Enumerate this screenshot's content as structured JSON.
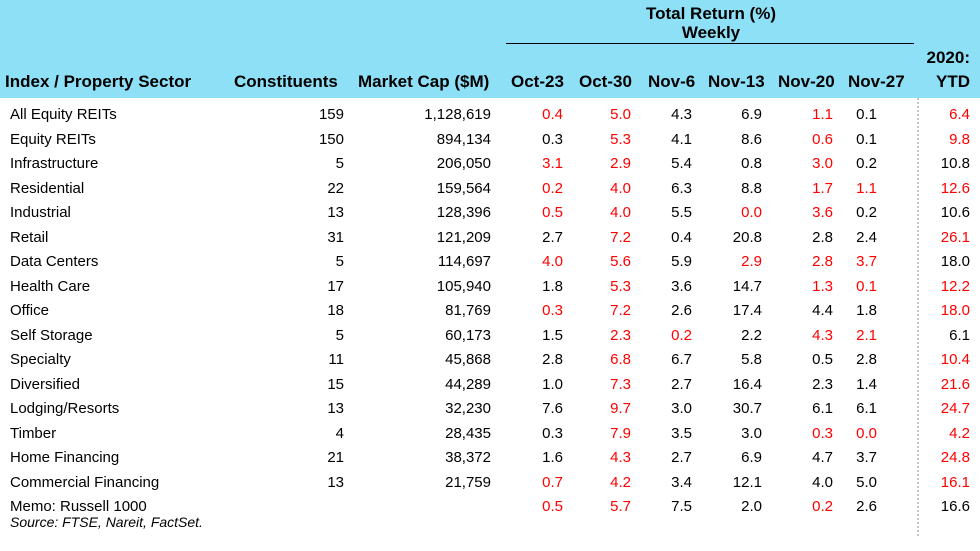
{
  "header": {
    "group_title_line1": "Total Return (%)",
    "group_title_line2": "Weekly",
    "year_top": "2020:",
    "columns": [
      "Index / Property Sector",
      "Constituents",
      "Market Cap ($M)",
      "Oct-23",
      "Oct-30",
      "Nov-6",
      "Nov-13",
      "Nov-20",
      "Nov-27",
      "YTD"
    ]
  },
  "colors": {
    "header_bg": "#8ee0f7",
    "highlight": "#ff0000"
  },
  "rows": [
    {
      "name": "All Equity REITs",
      "constituents": "159",
      "market_cap": "1,128,619",
      "vals": [
        "0.4",
        "5.0",
        "4.3",
        "6.9",
        "1.1",
        "0.1",
        "6.4"
      ],
      "red": [
        true,
        true,
        false,
        false,
        true,
        false,
        true
      ]
    },
    {
      "name": "Equity REITs",
      "constituents": "150",
      "market_cap": "894,134",
      "vals": [
        "0.3",
        "5.3",
        "4.1",
        "8.6",
        "0.6",
        "0.1",
        "9.8"
      ],
      "red": [
        false,
        true,
        false,
        false,
        true,
        false,
        true
      ]
    },
    {
      "name": "Infrastructure",
      "constituents": "5",
      "market_cap": "206,050",
      "vals": [
        "3.1",
        "2.9",
        "5.4",
        "0.8",
        "3.0",
        "0.2",
        "10.8"
      ],
      "red": [
        true,
        true,
        false,
        false,
        true,
        false,
        false
      ]
    },
    {
      "name": "Residential",
      "constituents": "22",
      "market_cap": "159,564",
      "vals": [
        "0.2",
        "4.0",
        "6.3",
        "8.8",
        "1.7",
        "1.1",
        "12.6"
      ],
      "red": [
        true,
        true,
        false,
        false,
        true,
        true,
        true
      ]
    },
    {
      "name": "Industrial",
      "constituents": "13",
      "market_cap": "128,396",
      "vals": [
        "0.5",
        "4.0",
        "5.5",
        "0.0",
        "3.6",
        "0.2",
        "10.6"
      ],
      "red": [
        true,
        true,
        false,
        true,
        true,
        false,
        false
      ]
    },
    {
      "name": "Retail",
      "constituents": "31",
      "market_cap": "121,209",
      "vals": [
        "2.7",
        "7.2",
        "0.4",
        "20.8",
        "2.8",
        "2.4",
        "26.1"
      ],
      "red": [
        false,
        true,
        false,
        false,
        false,
        false,
        true
      ]
    },
    {
      "name": "Data Centers",
      "constituents": "5",
      "market_cap": "114,697",
      "vals": [
        "4.0",
        "5.6",
        "5.9",
        "2.9",
        "2.8",
        "3.7",
        "18.0"
      ],
      "red": [
        true,
        true,
        false,
        true,
        true,
        true,
        false
      ]
    },
    {
      "name": "Health Care",
      "constituents": "17",
      "market_cap": "105,940",
      "vals": [
        "1.8",
        "5.3",
        "3.6",
        "14.7",
        "1.3",
        "0.1",
        "12.2"
      ],
      "red": [
        false,
        true,
        false,
        false,
        true,
        true,
        true
      ]
    },
    {
      "name": "Office",
      "constituents": "18",
      "market_cap": "81,769",
      "vals": [
        "0.3",
        "7.2",
        "2.6",
        "17.4",
        "4.4",
        "1.8",
        "18.0"
      ],
      "red": [
        true,
        true,
        false,
        false,
        false,
        false,
        true
      ]
    },
    {
      "name": "Self Storage",
      "constituents": "5",
      "market_cap": "60,173",
      "vals": [
        "1.5",
        "2.3",
        "0.2",
        "2.2",
        "4.3",
        "2.1",
        "6.1"
      ],
      "red": [
        false,
        true,
        true,
        false,
        true,
        true,
        false
      ]
    },
    {
      "name": "Specialty",
      "constituents": "11",
      "market_cap": "45,868",
      "vals": [
        "2.8",
        "6.8",
        "6.7",
        "5.8",
        "0.5",
        "2.8",
        "10.4"
      ],
      "red": [
        false,
        true,
        false,
        false,
        false,
        false,
        true
      ]
    },
    {
      "name": "Diversified",
      "constituents": "15",
      "market_cap": "44,289",
      "vals": [
        "1.0",
        "7.3",
        "2.7",
        "16.4",
        "2.3",
        "1.4",
        "21.6"
      ],
      "red": [
        false,
        true,
        false,
        false,
        false,
        false,
        true
      ]
    },
    {
      "name": "Lodging/Resorts",
      "constituents": "13",
      "market_cap": "32,230",
      "vals": [
        "7.6",
        "9.7",
        "3.0",
        "30.7",
        "6.1",
        "6.1",
        "24.7"
      ],
      "red": [
        false,
        true,
        false,
        false,
        false,
        false,
        true
      ]
    },
    {
      "name": "Timber",
      "constituents": "4",
      "market_cap": "28,435",
      "vals": [
        "0.3",
        "7.9",
        "3.5",
        "3.0",
        "0.3",
        "0.0",
        "4.2"
      ],
      "red": [
        false,
        true,
        false,
        false,
        true,
        true,
        true
      ]
    },
    {
      "name": "Home Financing",
      "constituents": "21",
      "market_cap": "38,372",
      "vals": [
        "1.6",
        "4.3",
        "2.7",
        "6.9",
        "4.7",
        "3.7",
        "24.8"
      ],
      "red": [
        false,
        true,
        false,
        false,
        false,
        false,
        true
      ]
    },
    {
      "name": "Commercial Financing",
      "constituents": "13",
      "market_cap": "21,759",
      "vals": [
        "0.7",
        "4.2",
        "3.4",
        "12.1",
        "4.0",
        "5.0",
        "16.1"
      ],
      "red": [
        true,
        true,
        false,
        false,
        false,
        false,
        true
      ]
    },
    {
      "name": "Memo: Russell 1000",
      "constituents": "",
      "market_cap": "",
      "vals": [
        "0.5",
        "5.7",
        "7.5",
        "2.0",
        "0.2",
        "2.6",
        "16.6"
      ],
      "red": [
        true,
        true,
        false,
        false,
        true,
        false,
        false
      ]
    }
  ],
  "source": "Source: FTSE, Nareit, FactSet."
}
